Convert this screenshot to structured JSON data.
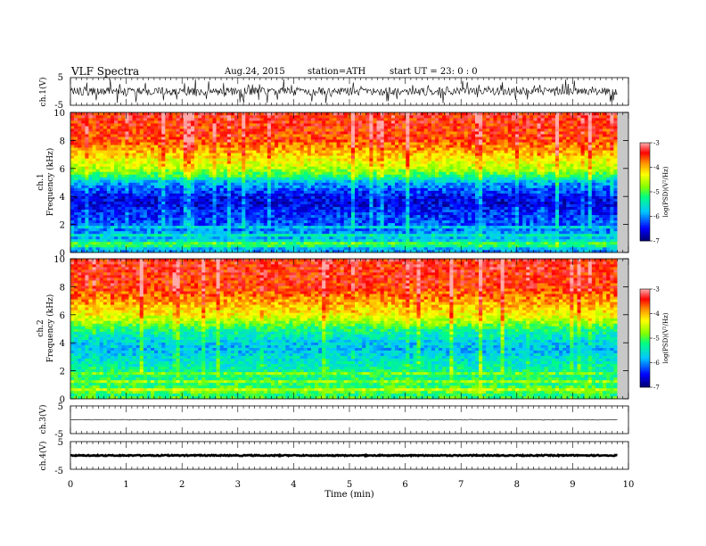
{
  "header": {
    "title": "VLF  Spectra",
    "date": "Aug.24, 2015",
    "station": "station=ATH",
    "start_ut": "start  UT  =   23: 0  : 0"
  },
  "chart_data": {
    "type": "heatmap",
    "xlabel": "Time  (min)",
    "xlim": [
      0,
      10
    ],
    "x_ticks": [
      "0",
      "1",
      "2",
      "3",
      "4",
      "5",
      "6",
      "7",
      "8",
      "9",
      "10"
    ],
    "data_end_min": 9.8,
    "panels": [
      {
        "kind": "waveform",
        "ylabel": "ch.1(V)",
        "ylim": [
          -5,
          5
        ],
        "y_ticks": [
          "5",
          "-5"
        ]
      },
      {
        "kind": "spectrogram",
        "ylabel_top": "ch.1",
        "ylabel": "Frequency  (kHz)",
        "ylim": [
          0,
          10
        ],
        "y_ticks": [
          "0",
          "2",
          "4",
          "6",
          "8",
          "10"
        ],
        "profile": [
          {
            "f": 0,
            "v": -6.6
          },
          {
            "f": 0.5,
            "v": -5.2
          },
          {
            "f": 1,
            "v": -5.8
          },
          {
            "f": 2,
            "v": -6.2
          },
          {
            "f": 3,
            "v": -6.4
          },
          {
            "f": 3.5,
            "v": -6.6
          },
          {
            "f": 4,
            "v": -6.5
          },
          {
            "f": 5,
            "v": -5.9
          },
          {
            "f": 5.5,
            "v": -5.1
          },
          {
            "f": 6,
            "v": -4.6
          },
          {
            "f": 7,
            "v": -4.1
          },
          {
            "f": 8,
            "v": -3.6
          },
          {
            "f": 10,
            "v": -3.4
          }
        ],
        "colorbar": {
          "label": "log(PSD)(V²/Hz)",
          "range": [
            -7,
            -3
          ],
          "ticks": [
            "-3",
            "-4",
            "-5",
            "-6",
            "-7"
          ]
        }
      },
      {
        "kind": "spectrogram",
        "ylabel_top": "ch.2",
        "ylabel": "Frequency  (kHz)",
        "ylim": [
          0,
          10
        ],
        "y_ticks": [
          "0",
          "2",
          "4",
          "6",
          "8",
          "10"
        ],
        "profile": [
          {
            "f": 0,
            "v": -5.6
          },
          {
            "f": 0.5,
            "v": -4.9
          },
          {
            "f": 1,
            "v": -5.1
          },
          {
            "f": 2,
            "v": -5.3
          },
          {
            "f": 3,
            "v": -5.6
          },
          {
            "f": 3.5,
            "v": -5.8
          },
          {
            "f": 4,
            "v": -5.7
          },
          {
            "f": 5,
            "v": -5.2
          },
          {
            "f": 5.5,
            "v": -4.7
          },
          {
            "f": 6,
            "v": -4.3
          },
          {
            "f": 7,
            "v": -3.9
          },
          {
            "f": 8,
            "v": -3.5
          },
          {
            "f": 10,
            "v": -3.4
          }
        ],
        "colorbar": {
          "label": "log(PSD)(V²/Hz)",
          "range": [
            -7,
            -3
          ],
          "ticks": [
            "-3",
            "-4",
            "-5",
            "-6",
            "-7"
          ]
        }
      },
      {
        "kind": "waveform",
        "ylabel": "ch.3(V)",
        "ylim": [
          -5,
          5
        ],
        "y_ticks": [
          "5",
          "-5"
        ]
      },
      {
        "kind": "waveform",
        "ylabel": "ch.4(V)",
        "ylim": [
          -5,
          5
        ],
        "y_ticks": [
          "5",
          "-5"
        ]
      }
    ]
  }
}
